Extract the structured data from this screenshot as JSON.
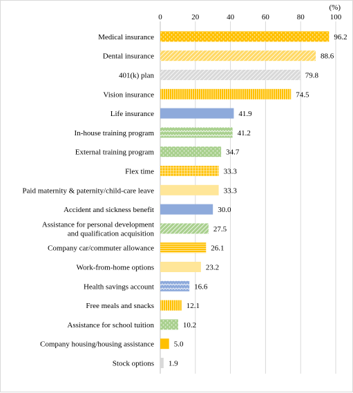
{
  "chart_data": {
    "type": "bar",
    "orientation": "horizontal",
    "unit_label": "(%)",
    "xlim": [
      0,
      100
    ],
    "xticks": [
      0,
      20,
      40,
      60,
      80,
      100
    ],
    "grid": true,
    "categories": [
      [
        "Medical insurance"
      ],
      [
        "Dental insurance"
      ],
      [
        "401(k) plan"
      ],
      [
        "Vision insurance"
      ],
      [
        "Life insurance"
      ],
      [
        "In-house training program"
      ],
      [
        "External training program"
      ],
      [
        "Flex time"
      ],
      [
        "Paid maternity & paternity/child-care leave"
      ],
      [
        "Accident and sickness benefit"
      ],
      [
        "Assistance for personal development",
        "and qualification acquisition"
      ],
      [
        "Company car/commuter allowance"
      ],
      [
        "Work-from-home options"
      ],
      [
        "Health savings account"
      ],
      [
        "Free meals and snacks"
      ],
      [
        "Assistance for school tuition"
      ],
      [
        "Company housing/housing assistance"
      ],
      [
        "Stock options"
      ]
    ],
    "values": [
      96.2,
      88.6,
      79.8,
      74.5,
      41.9,
      41.2,
      34.7,
      33.3,
      33.3,
      30.0,
      27.5,
      26.1,
      23.2,
      16.6,
      12.1,
      10.2,
      5.0,
      1.9
    ],
    "value_labels": [
      "96.2",
      "88.6",
      "79.8",
      "74.5",
      "41.9",
      "41.2",
      "34.7",
      "33.3",
      "33.3",
      "30.0",
      "27.5",
      "26.1",
      "23.2",
      "16.6",
      "12.1",
      "10.2",
      "5.0",
      "1.9"
    ],
    "bar_styles": [
      {
        "color": "#ffc000",
        "pattern": "dots"
      },
      {
        "color": "#ffd966",
        "pattern": "diag"
      },
      {
        "color": "#d9d9d9",
        "pattern": "diag"
      },
      {
        "color": "#ffc000",
        "pattern": "vlines"
      },
      {
        "color": "#8eaadb",
        "pattern": "solid"
      },
      {
        "color": "#a9d08e",
        "pattern": "zigzag"
      },
      {
        "color": "#a9d08e",
        "pattern": "dots"
      },
      {
        "color": "#ffc000",
        "pattern": "grid"
      },
      {
        "color": "#ffe699",
        "pattern": "solid"
      },
      {
        "color": "#8eaadb",
        "pattern": "solid"
      },
      {
        "color": "#a9d08e",
        "pattern": "diag"
      },
      {
        "color": "#ffc000",
        "pattern": "hlines"
      },
      {
        "color": "#ffe699",
        "pattern": "solid"
      },
      {
        "color": "#8eaadb",
        "pattern": "zigzag"
      },
      {
        "color": "#ffc000",
        "pattern": "vlines"
      },
      {
        "color": "#a9d08e",
        "pattern": "dots"
      },
      {
        "color": "#ffc000",
        "pattern": "solid"
      },
      {
        "color": "#d9d9d9",
        "pattern": "solid"
      }
    ]
  }
}
